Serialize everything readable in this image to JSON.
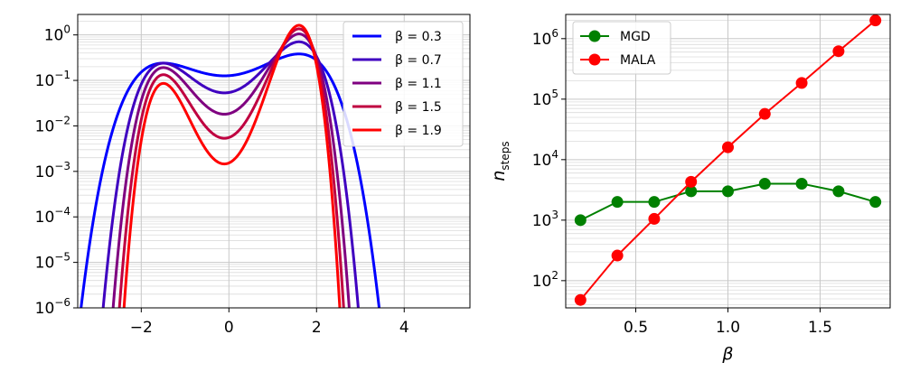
{
  "chart_data": [
    {
      "type": "line",
      "title": "",
      "xlabel": "",
      "ylabel": "",
      "xlim": [
        -3.45,
        5.5
      ],
      "ylim_log10": [
        -6,
        0.45
      ],
      "yscale": "log",
      "grid": "on (major + minor y)",
      "legend_position": "top-right",
      "x_ticks": [
        -2,
        0,
        2,
        4
      ],
      "x_tick_labels": [
        "−2",
        "0",
        "2",
        "4"
      ],
      "y_ticks_log10": [
        -6,
        -5,
        -4,
        -3,
        -2,
        -1,
        0
      ],
      "y_tick_labels": [
        "10",
        "10",
        "10",
        "10",
        "10",
        "10",
        "10"
      ],
      "y_tick_exponents": [
        "−6",
        "−5",
        "−4",
        "−3",
        "−2",
        "−1",
        "0"
      ],
      "series": [
        {
          "name": "β = 0.3",
          "beta": 0.3,
          "color": "#0000ff"
        },
        {
          "name": "β = 0.7",
          "beta": 0.7,
          "color": "#3f00c0"
        },
        {
          "name": "β = 1.1",
          "beta": 1.1,
          "color": "#7f0080"
        },
        {
          "name": "β = 1.5",
          "beta": 1.5,
          "color": "#bf0040"
        },
        {
          "name": "β = 1.9",
          "beta": 1.9,
          "color": "#ff0000"
        }
      ]
    },
    {
      "type": "line",
      "title": "",
      "xlabel": "β",
      "ylabel": "n",
      "ylabel_subscript": "steps",
      "xlim": [
        0.12,
        1.88
      ],
      "ylim_log10": [
        1.55,
        6.4
      ],
      "yscale": "log",
      "grid": "on (major + minor y)",
      "legend_position": "top-left",
      "x_ticks": [
        0.5,
        1.0,
        1.5
      ],
      "x_tick_labels": [
        "0.5",
        "1.0",
        "1.5"
      ],
      "y_ticks_log10": [
        2,
        3,
        4,
        5,
        6
      ],
      "y_tick_labels": [
        "10",
        "10",
        "10",
        "10",
        "10"
      ],
      "y_tick_exponents": [
        "2",
        "3",
        "4",
        "5",
        "6"
      ],
      "x": [
        0.2,
        0.4,
        0.6,
        0.8,
        1.0,
        1.2,
        1.4,
        1.6,
        1.8
      ],
      "series": [
        {
          "name": "MGD",
          "color": "#008000",
          "values": [
            1000,
            2000,
            2000,
            3000,
            3000,
            4000,
            4000,
            3000,
            2000
          ]
        },
        {
          "name": "MALA",
          "color": "#ff0000",
          "values": [
            48,
            260,
            1050,
            4300,
            16000,
            57000,
            185000,
            620000,
            2000000
          ]
        }
      ]
    }
  ]
}
